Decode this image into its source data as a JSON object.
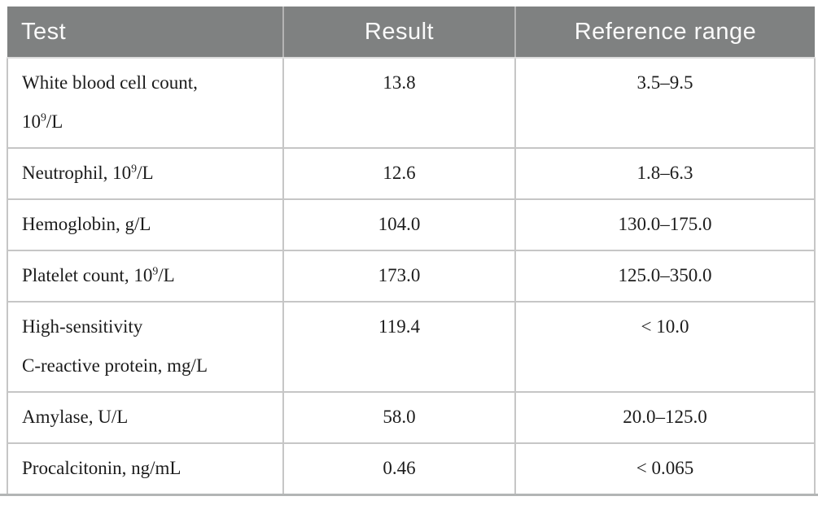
{
  "colors": {
    "header_bg": "#7f8181",
    "header_text": "#fafafa",
    "rule_color": "#c6c6c6",
    "header_divider": "#b4b4b4",
    "bottom_rule": "#b3b5b5",
    "body_text": "#1c1c1c"
  },
  "table": {
    "columns": [
      {
        "label": "Test"
      },
      {
        "label": "Result"
      },
      {
        "label": "Reference range"
      }
    ],
    "rows": [
      {
        "test": [
          {
            "text": "White blood cell count,"
          },
          {
            "br": true
          },
          {
            "text": "10"
          },
          {
            "text": "9",
            "sup": true
          },
          {
            "text": "/L"
          }
        ],
        "result": "13.8",
        "reference_range": "3.5–9.5"
      },
      {
        "test": [
          {
            "text": "Neutrophil, 10"
          },
          {
            "text": "9",
            "sup": true
          },
          {
            "text": "/L"
          }
        ],
        "result": "12.6",
        "reference_range": "1.8–6.3"
      },
      {
        "test": [
          {
            "text": "Hemoglobin, g/L"
          }
        ],
        "result": "104.0",
        "reference_range": "130.0–175.0"
      },
      {
        "test": [
          {
            "text": "Platelet count, 10"
          },
          {
            "text": "9",
            "sup": true
          },
          {
            "text": "/L"
          }
        ],
        "result": "173.0",
        "reference_range": "125.0–350.0"
      },
      {
        "test": [
          {
            "text": "High-sensitivity"
          },
          {
            "br": true
          },
          {
            "text": "C-reactive protein, mg/L"
          }
        ],
        "result": "119.4",
        "reference_range": "< 10.0"
      },
      {
        "test": [
          {
            "text": "Amylase, U/L"
          }
        ],
        "result": "58.0",
        "reference_range": "20.0–125.0"
      },
      {
        "test": [
          {
            "text": "Procalcitonin, ng/mL"
          }
        ],
        "result": "0.46",
        "reference_range": "< 0.065"
      }
    ]
  }
}
